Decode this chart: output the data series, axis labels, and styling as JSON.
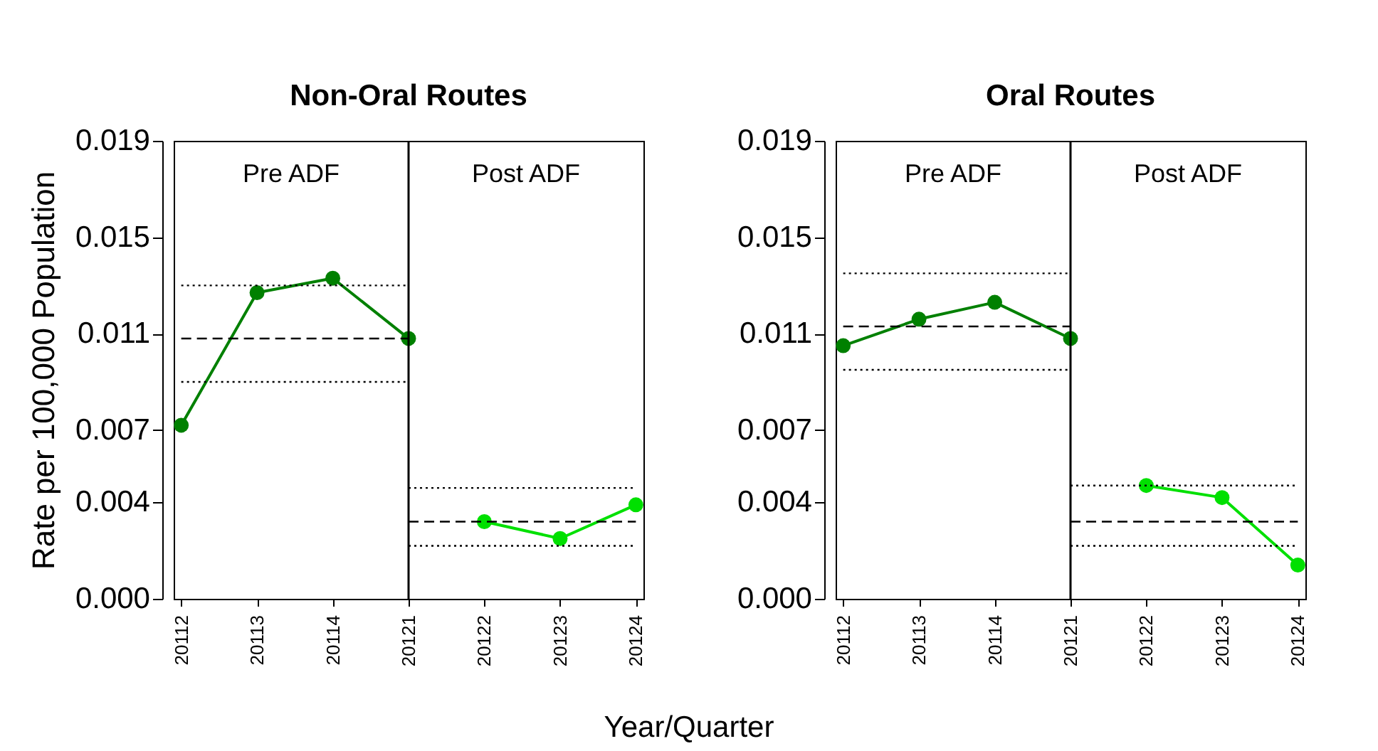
{
  "chart_data": [
    {
      "type": "line",
      "title": "Non-Oral Routes",
      "ylabel": "Rate per 100,000 Population",
      "xlabel": "Year/Quarter",
      "categories": [
        "20112",
        "20113",
        "20114",
        "20121",
        "20122",
        "20123",
        "20124"
      ],
      "series": [
        {
          "color": "#008000",
          "marker": "circle",
          "values": [
            0.0072,
            0.0127,
            0.0133,
            0.0108,
            null,
            null,
            null
          ]
        },
        {
          "color": "#00e000",
          "marker": "circle",
          "values": [
            null,
            null,
            null,
            null,
            0.0032,
            0.0025,
            0.0039
          ]
        },
        {
          "color": "#000000",
          "marker": "none",
          "line_style": "dashed",
          "x": [
            "20112",
            "20121"
          ],
          "values": [
            0.0108,
            0.0108
          ]
        },
        {
          "color": "#000000",
          "marker": "none",
          "line_style": "dotted",
          "x": [
            "20112",
            "20121"
          ],
          "values": [
            0.013,
            0.013
          ]
        },
        {
          "color": "#000000",
          "marker": "none",
          "line_style": "dotted",
          "x": [
            "20112",
            "20121"
          ],
          "values": [
            0.009,
            0.009
          ]
        },
        {
          "color": "#000000",
          "marker": "none",
          "line_style": "dashed",
          "x": [
            "20121",
            "20124"
          ],
          "values": [
            0.0032,
            0.0032
          ]
        },
        {
          "color": "#000000",
          "marker": "none",
          "line_style": "dotted",
          "x": [
            "20121",
            "20124"
          ],
          "values": [
            0.0046,
            0.0046
          ]
        },
        {
          "color": "#000000",
          "marker": "none",
          "line_style": "dotted",
          "x": [
            "20121",
            "20124"
          ],
          "values": [
            0.0022,
            0.0022
          ]
        }
      ],
      "ref_lines": [
        {
          "axis": "x",
          "value": "20121",
          "color": "#000000",
          "line_style": "solid"
        }
      ],
      "annotations": [
        "Pre ADF",
        "Post ADF"
      ],
      "ylim": [
        0,
        0.019
      ],
      "yticks": [
        {
          "value": 0,
          "label": "0.000"
        },
        0.004,
        0.007,
        0.011,
        0.015,
        0.019
      ],
      "grid": false
    },
    {
      "type": "line",
      "title": "Oral Routes",
      "categories": [
        "20112",
        "20113",
        "20114",
        "20121",
        "20122",
        "20123",
        "20124"
      ],
      "series": [
        {
          "color": "#008000",
          "marker": "circle",
          "values": [
            0.0105,
            0.0116,
            0.0123,
            0.0108,
            null,
            null,
            null
          ]
        },
        {
          "color": "#00e000",
          "marker": "circle",
          "values": [
            null,
            null,
            null,
            null,
            0.0047,
            0.0042,
            0.0014
          ]
        },
        {
          "color": "#000000",
          "marker": "none",
          "line_style": "dashed",
          "x": [
            "20112",
            "20121"
          ],
          "values": [
            0.0113,
            0.0113
          ]
        },
        {
          "color": "#000000",
          "marker": "none",
          "line_style": "dotted",
          "x": [
            "20112",
            "20121"
          ],
          "values": [
            0.0135,
            0.0135
          ]
        },
        {
          "color": "#000000",
          "marker": "none",
          "line_style": "dotted",
          "x": [
            "20112",
            "20121"
          ],
          "values": [
            0.0095,
            0.0095
          ]
        },
        {
          "color": "#000000",
          "marker": "none",
          "line_style": "dashed",
          "x": [
            "20121",
            "20124"
          ],
          "values": [
            0.0032,
            0.0032
          ]
        },
        {
          "color": "#000000",
          "marker": "none",
          "line_style": "dotted",
          "x": [
            "20121",
            "20124"
          ],
          "values": [
            0.0047,
            0.0047
          ]
        },
        {
          "color": "#000000",
          "marker": "none",
          "line_style": "dotted",
          "x": [
            "20121",
            "20124"
          ],
          "values": [
            0.0022,
            0.0022
          ]
        }
      ],
      "ref_lines": [
        {
          "axis": "x",
          "value": "20121",
          "color": "#000000",
          "line_style": "solid"
        }
      ],
      "annotations": [
        "Pre ADF",
        "Post ADF"
      ],
      "ylim": [
        0,
        0.019
      ],
      "yticks": [
        {
          "value": 0,
          "label": "0.000"
        },
        0.004,
        0.007,
        0.011,
        0.015,
        0.019
      ],
      "grid": false
    }
  ]
}
